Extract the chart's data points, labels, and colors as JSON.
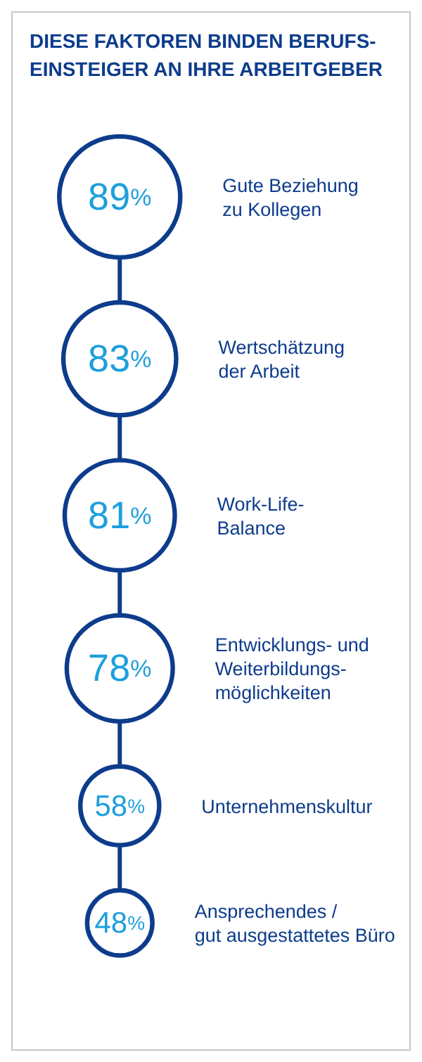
{
  "chart_data": {
    "type": "other",
    "title": "DIESE FAKTOREN BINDEN BERUFS-\nEINSTEIGER AN IHRE ARBEITGEBER",
    "categories": [
      "Gute Beziehung\nzu Kollegen",
      "Wertschätzung\nder Arbeit",
      "Work-Life-\nBalance",
      "Entwicklungs- und\nWeiterbildungs-\nmöglichkeiten",
      "Unternehmenskultur",
      "Ansprechendes /\ngut ausgestattetes Büro"
    ],
    "values": [
      89,
      83,
      81,
      78,
      58,
      48
    ],
    "value_labels": [
      "89%",
      "83%",
      "81%",
      "78%",
      "58%",
      "48%"
    ],
    "color": "#0d3c8c"
  }
}
